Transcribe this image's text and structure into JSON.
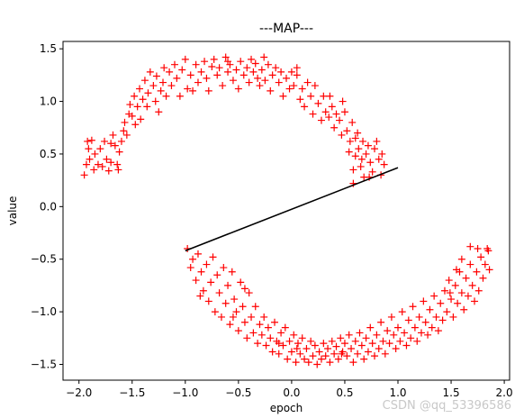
{
  "watermark": "CSDN @qq_53396586",
  "chart_data": {
    "type": "scatter",
    "title": "---MAP---",
    "xlabel": "epoch",
    "ylabel": "value",
    "xlim": [
      -2.15,
      2.05
    ],
    "ylim": [
      -1.65,
      1.57
    ],
    "xticks": [
      -2.0,
      -1.5,
      -1.0,
      -0.5,
      0.0,
      0.5,
      1.0,
      1.5,
      2.0
    ],
    "yticks": [
      -1.5,
      -1.0,
      -0.5,
      0.0,
      0.5,
      1.0,
      1.5
    ],
    "xtick_labels": [
      "−2.0",
      "−1.5",
      "−1.0",
      "−0.5",
      "0.0",
      "0.5",
      "1.0",
      "1.5",
      "2.0"
    ],
    "ytick_labels": [
      "−1.5",
      "−1.0",
      "−0.5",
      "0.0",
      "0.5",
      "1.0",
      "1.5"
    ],
    "grid": false,
    "marker_color": "#ff0000",
    "line_color": "#000000",
    "series": [
      {
        "marker": "+",
        "points": [
          [
            -1.95,
            0.3
          ],
          [
            -1.93,
            0.4
          ],
          [
            -1.92,
            0.62
          ],
          [
            -1.9,
            0.45
          ],
          [
            -1.88,
            0.63
          ],
          [
            -1.86,
            0.35
          ],
          [
            -1.85,
            0.5
          ],
          [
            -1.82,
            0.4
          ],
          [
            -1.8,
            0.55
          ],
          [
            -1.78,
            0.38
          ],
          [
            -1.76,
            0.62
          ],
          [
            -1.74,
            0.45
          ],
          [
            -1.72,
            0.34
          ],
          [
            -1.7,
            0.42
          ],
          [
            -1.68,
            0.68
          ],
          [
            -1.66,
            0.58
          ],
          [
            -1.64,
            0.4
          ],
          [
            -1.62,
            0.52
          ],
          [
            -1.6,
            0.62
          ],
          [
            -1.58,
            0.72
          ],
          [
            -1.57,
            0.8
          ],
          [
            -1.55,
            0.68
          ],
          [
            -1.53,
            0.88
          ],
          [
            -1.52,
            0.97
          ],
          [
            -1.5,
            0.86
          ],
          [
            -1.48,
            1.05
          ],
          [
            -1.47,
            0.78
          ],
          [
            -1.45,
            0.95
          ],
          [
            -1.43,
            1.12
          ],
          [
            -1.42,
            0.83
          ],
          [
            -1.4,
            1.02
          ],
          [
            -1.38,
            1.2
          ],
          [
            -1.36,
            0.95
          ],
          [
            -1.35,
            1.08
          ],
          [
            -1.33,
            1.28
          ],
          [
            -1.3,
            1.15
          ],
          [
            -1.28,
            1.0
          ],
          [
            -1.27,
            1.24
          ],
          [
            -1.25,
            0.9
          ],
          [
            -1.23,
            1.1
          ],
          [
            -1.21,
            1.18
          ],
          [
            -1.2,
            1.32
          ],
          [
            -1.18,
            1.05
          ],
          [
            -1.15,
            1.28
          ],
          [
            -1.13,
            1.15
          ],
          [
            -1.1,
            1.35
          ],
          [
            -1.08,
            1.22
          ],
          [
            -1.05,
            1.05
          ],
          [
            -1.03,
            1.3
          ],
          [
            -1.0,
            1.4
          ],
          [
            -0.98,
            1.12
          ],
          [
            -0.95,
            1.25
          ],
          [
            -0.93,
            1.1
          ],
          [
            -0.9,
            1.35
          ],
          [
            -0.88,
            1.18
          ],
          [
            -0.85,
            1.28
          ],
          [
            -0.82,
            1.38
          ],
          [
            -0.8,
            1.22
          ],
          [
            -0.78,
            1.1
          ],
          [
            -0.75,
            1.33
          ],
          [
            -0.73,
            1.4
          ],
          [
            -0.7,
            1.25
          ],
          [
            -0.68,
            1.32
          ],
          [
            -0.65,
            1.15
          ],
          [
            -0.62,
            1.42
          ],
          [
            -0.6,
            1.28
          ],
          [
            -0.58,
            1.35
          ],
          [
            -0.55,
            1.2
          ],
          [
            -0.52,
            1.3
          ],
          [
            -0.5,
            1.12
          ],
          [
            -0.48,
            1.38
          ],
          [
            -0.45,
            1.25
          ],
          [
            -0.42,
            1.32
          ],
          [
            -0.4,
            1.18
          ],
          [
            -0.38,
            1.4
          ],
          [
            -0.36,
            1.28
          ],
          [
            -0.34,
            1.36
          ],
          [
            -0.32,
            1.22
          ],
          [
            -0.3,
            1.15
          ],
          [
            -0.28,
            1.3
          ],
          [
            -0.25,
            1.2
          ],
          [
            -0.22,
            1.35
          ],
          [
            -0.2,
            1.1
          ],
          [
            -0.18,
            1.25
          ],
          [
            -0.15,
            1.32
          ],
          [
            -0.12,
            1.18
          ],
          [
            -0.1,
            1.28
          ],
          [
            -0.08,
            1.05
          ],
          [
            -0.05,
            1.22
          ],
          [
            -0.02,
            1.12
          ],
          [
            0.0,
            1.28
          ],
          [
            0.02,
            1.15
          ],
          [
            0.05,
            1.25
          ],
          [
            0.08,
            1.02
          ],
          [
            0.1,
            1.12
          ],
          [
            0.12,
            0.95
          ],
          [
            0.15,
            1.18
          ],
          [
            0.18,
            1.05
          ],
          [
            0.2,
            0.88
          ],
          [
            0.22,
            1.15
          ],
          [
            0.25,
            0.98
          ],
          [
            0.28,
            0.82
          ],
          [
            0.3,
            1.05
          ],
          [
            0.32,
            0.9
          ],
          [
            0.35,
            0.85
          ],
          [
            0.38,
            0.95
          ],
          [
            0.4,
            0.75
          ],
          [
            0.42,
            0.88
          ],
          [
            0.45,
            0.82
          ],
          [
            0.47,
            0.68
          ],
          [
            0.5,
            0.9
          ],
          [
            0.52,
            0.72
          ],
          [
            0.54,
            0.52
          ],
          [
            0.55,
            0.62
          ],
          [
            0.57,
            0.8
          ],
          [
            0.58,
            0.35
          ],
          [
            0.6,
            0.48
          ],
          [
            0.62,
            0.7
          ],
          [
            0.63,
            0.55
          ],
          [
            0.65,
            0.38
          ],
          [
            0.67,
            0.62
          ],
          [
            0.68,
            0.28
          ],
          [
            0.7,
            0.5
          ],
          [
            0.72,
            0.58
          ],
          [
            0.74,
            0.42
          ],
          [
            0.76,
            0.33
          ],
          [
            0.78,
            0.55
          ],
          [
            0.8,
            0.62
          ],
          [
            0.82,
            0.45
          ],
          [
            0.84,
            0.3
          ],
          [
            0.85,
            0.5
          ],
          [
            0.87,
            0.4
          ],
          [
            0.6,
            0.65
          ],
          [
            0.48,
            1.0
          ],
          [
            0.36,
            1.05
          ],
          [
            -0.6,
            1.38
          ],
          [
            -1.7,
            0.6
          ],
          [
            -1.63,
            0.35
          ],
          [
            -1.91,
            0.55
          ],
          [
            -0.26,
            1.42
          ],
          [
            0.05,
            1.32
          ],
          [
            0.73,
            0.28
          ],
          [
            0.58,
            0.22
          ],
          [
            0.66,
            0.45
          ],
          [
            -0.98,
            -0.4
          ],
          [
            -0.95,
            -0.58
          ],
          [
            -0.93,
            -0.5
          ],
          [
            -0.9,
            -0.7
          ],
          [
            -0.88,
            -0.45
          ],
          [
            -0.85,
            -0.62
          ],
          [
            -0.83,
            -0.8
          ],
          [
            -0.8,
            -0.55
          ],
          [
            -0.78,
            -0.9
          ],
          [
            -0.76,
            -0.72
          ],
          [
            -0.74,
            -0.48
          ],
          [
            -0.72,
            -1.0
          ],
          [
            -0.7,
            -0.65
          ],
          [
            -0.68,
            -0.82
          ],
          [
            -0.66,
            -1.05
          ],
          [
            -0.64,
            -0.58
          ],
          [
            -0.62,
            -0.92
          ],
          [
            -0.6,
            -0.75
          ],
          [
            -0.58,
            -1.12
          ],
          [
            -0.56,
            -0.62
          ],
          [
            -0.54,
            -0.88
          ],
          [
            -0.52,
            -1.0
          ],
          [
            -0.5,
            -1.18
          ],
          [
            -0.48,
            -0.72
          ],
          [
            -0.46,
            -0.95
          ],
          [
            -0.44,
            -1.1
          ],
          [
            -0.42,
            -1.25
          ],
          [
            -0.4,
            -0.82
          ],
          [
            -0.38,
            -1.05
          ],
          [
            -0.36,
            -1.2
          ],
          [
            -0.34,
            -0.95
          ],
          [
            -0.32,
            -1.3
          ],
          [
            -0.3,
            -1.12
          ],
          [
            -0.28,
            -1.22
          ],
          [
            -0.26,
            -1.05
          ],
          [
            -0.24,
            -1.32
          ],
          [
            -0.22,
            -1.15
          ],
          [
            -0.2,
            -1.25
          ],
          [
            -0.18,
            -1.38
          ],
          [
            -0.16,
            -1.1
          ],
          [
            -0.14,
            -1.28
          ],
          [
            -0.12,
            -1.4
          ],
          [
            -0.1,
            -1.2
          ],
          [
            -0.08,
            -1.32
          ],
          [
            -0.06,
            -1.15
          ],
          [
            -0.04,
            -1.45
          ],
          [
            -0.02,
            -1.28
          ],
          [
            0.0,
            -1.38
          ],
          [
            0.02,
            -1.22
          ],
          [
            0.04,
            -1.48
          ],
          [
            0.06,
            -1.3
          ],
          [
            0.08,
            -1.4
          ],
          [
            0.1,
            -1.25
          ],
          [
            0.12,
            -1.45
          ],
          [
            0.14,
            -1.35
          ],
          [
            0.16,
            -1.48
          ],
          [
            0.18,
            -1.28
          ],
          [
            0.2,
            -1.42
          ],
          [
            0.22,
            -1.32
          ],
          [
            0.24,
            -1.5
          ],
          [
            0.26,
            -1.38
          ],
          [
            0.28,
            -1.45
          ],
          [
            0.3,
            -1.3
          ],
          [
            0.32,
            -1.42
          ],
          [
            0.34,
            -1.35
          ],
          [
            0.36,
            -1.48
          ],
          [
            0.38,
            -1.28
          ],
          [
            0.4,
            -1.4
          ],
          [
            0.42,
            -1.33
          ],
          [
            0.44,
            -1.45
          ],
          [
            0.46,
            -1.25
          ],
          [
            0.48,
            -1.38
          ],
          [
            0.5,
            -1.3
          ],
          [
            0.52,
            -1.42
          ],
          [
            0.54,
            -1.22
          ],
          [
            0.56,
            -1.35
          ],
          [
            0.58,
            -1.48
          ],
          [
            0.6,
            -1.28
          ],
          [
            0.62,
            -1.4
          ],
          [
            0.64,
            -1.2
          ],
          [
            0.66,
            -1.32
          ],
          [
            0.68,
            -1.45
          ],
          [
            0.7,
            -1.25
          ],
          [
            0.72,
            -1.38
          ],
          [
            0.74,
            -1.15
          ],
          [
            0.76,
            -1.3
          ],
          [
            0.78,
            -1.42
          ],
          [
            0.8,
            -1.22
          ],
          [
            0.82,
            -1.35
          ],
          [
            0.84,
            -1.1
          ],
          [
            0.86,
            -1.28
          ],
          [
            0.88,
            -1.4
          ],
          [
            0.9,
            -1.18
          ],
          [
            0.92,
            -1.3
          ],
          [
            0.94,
            -1.05
          ],
          [
            0.96,
            -1.22
          ],
          [
            0.98,
            -1.35
          ],
          [
            1.0,
            -1.15
          ],
          [
            1.02,
            -1.28
          ],
          [
            1.04,
            -1.0
          ],
          [
            1.06,
            -1.2
          ],
          [
            1.08,
            -1.32
          ],
          [
            1.1,
            -1.08
          ],
          [
            1.12,
            -1.25
          ],
          [
            1.14,
            -0.95
          ],
          [
            1.16,
            -1.15
          ],
          [
            1.18,
            -1.28
          ],
          [
            1.2,
            -1.05
          ],
          [
            1.22,
            -1.2
          ],
          [
            1.24,
            -0.9
          ],
          [
            1.26,
            -1.1
          ],
          [
            1.28,
            -1.22
          ],
          [
            1.3,
            -0.98
          ],
          [
            1.32,
            -1.15
          ],
          [
            1.34,
            -0.85
          ],
          [
            1.36,
            -1.05
          ],
          [
            1.38,
            -1.18
          ],
          [
            1.4,
            -0.92
          ],
          [
            1.42,
            -1.08
          ],
          [
            1.44,
            -0.8
          ],
          [
            1.46,
            -1.0
          ],
          [
            1.48,
            -0.7
          ],
          [
            1.5,
            -0.88
          ],
          [
            1.52,
            -1.05
          ],
          [
            1.54,
            -0.75
          ],
          [
            1.56,
            -0.92
          ],
          [
            1.58,
            -0.62
          ],
          [
            1.6,
            -0.82
          ],
          [
            1.62,
            -0.98
          ],
          [
            1.64,
            -0.68
          ],
          [
            1.66,
            -0.85
          ],
          [
            1.68,
            -0.55
          ],
          [
            1.7,
            -0.75
          ],
          [
            1.72,
            -0.9
          ],
          [
            1.74,
            -0.62
          ],
          [
            1.76,
            -0.8
          ],
          [
            1.78,
            -0.48
          ],
          [
            1.8,
            -0.68
          ],
          [
            1.82,
            -0.55
          ],
          [
            1.84,
            -0.4
          ],
          [
            1.86,
            -0.6
          ],
          [
            1.85,
            -0.42
          ],
          [
            1.75,
            -0.4
          ],
          [
            1.68,
            -0.38
          ],
          [
            1.6,
            -0.5
          ],
          [
            1.55,
            -0.6
          ],
          [
            1.49,
            -0.82
          ],
          [
            0.47,
            -1.4
          ],
          [
            -0.12,
            -1.3
          ],
          [
            -0.55,
            -1.05
          ],
          [
            -0.86,
            -0.85
          ],
          [
            0.05,
            -1.35
          ],
          [
            -0.44,
            -0.78
          ]
        ]
      },
      {
        "marker": "line",
        "points": [
          [
            -1.0,
            -0.42
          ],
          [
            1.0,
            0.37
          ]
        ]
      }
    ]
  }
}
